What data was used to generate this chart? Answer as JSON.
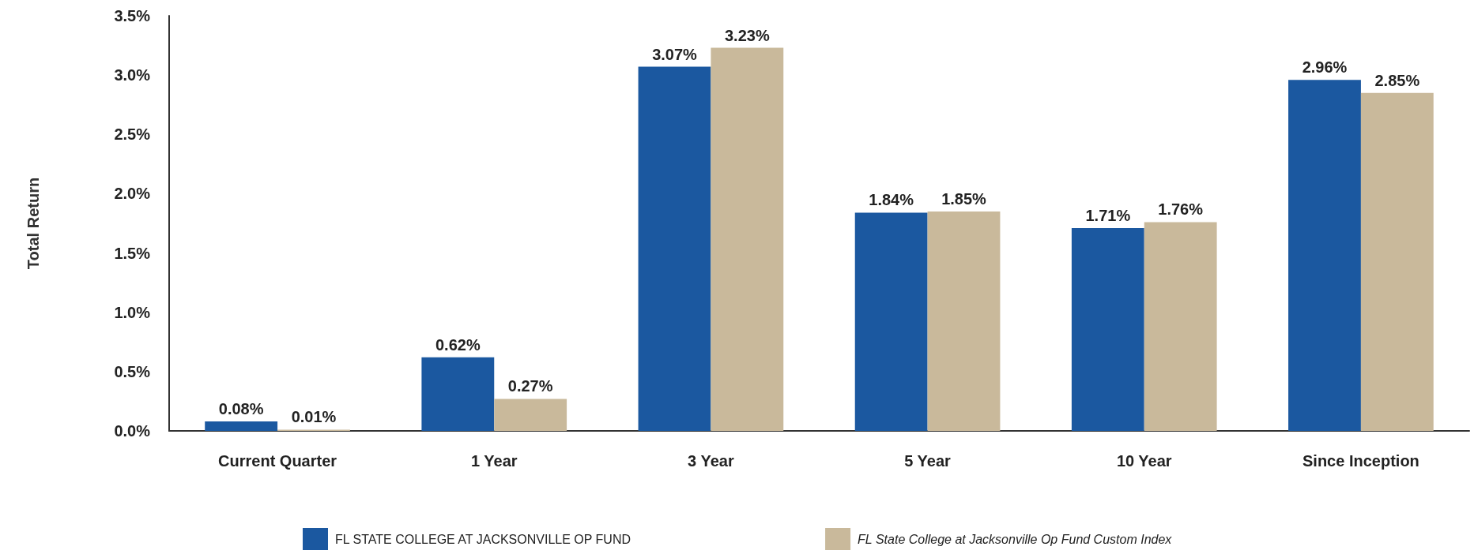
{
  "chart_data": {
    "type": "bar",
    "ylabel": "Total Return",
    "categories": [
      "Current Quarter",
      "1 Year",
      "3 Year",
      "5 Year",
      "10 Year",
      "Since Inception"
    ],
    "series": [
      {
        "name": "FL STATE COLLEGE AT JACKSONVILLE OP FUND",
        "color": "#1b58a0",
        "values": [
          0.08,
          0.62,
          3.07,
          1.84,
          1.71,
          2.96
        ],
        "value_labels": [
          "0.08%",
          "0.62%",
          "3.07%",
          "1.84%",
          "1.71%",
          "2.96%"
        ]
      },
      {
        "name": "FL State College at Jacksonville Op Fund Custom Index",
        "color": "#c9b99b",
        "values": [
          0.01,
          0.27,
          3.23,
          1.85,
          1.76,
          2.85
        ],
        "value_labels": [
          "0.01%",
          "0.27%",
          "3.23%",
          "1.85%",
          "1.76%",
          "2.85%"
        ]
      }
    ],
    "ylim": [
      0,
      3.5
    ],
    "yticks": [
      {
        "value": 0,
        "label": "0.0%"
      },
      {
        "value": 0.5,
        "label": "0.5%"
      },
      {
        "value": 1,
        "label": "1.0%"
      },
      {
        "value": 1.5,
        "label": "1.5%"
      },
      {
        "value": 2,
        "label": "2.0%"
      },
      {
        "value": 2.5,
        "label": "2.5%"
      },
      {
        "value": 3,
        "label": "3.0%"
      },
      {
        "value": 3.5,
        "label": "3.5%"
      }
    ],
    "grid": false,
    "legend": "bottom"
  }
}
